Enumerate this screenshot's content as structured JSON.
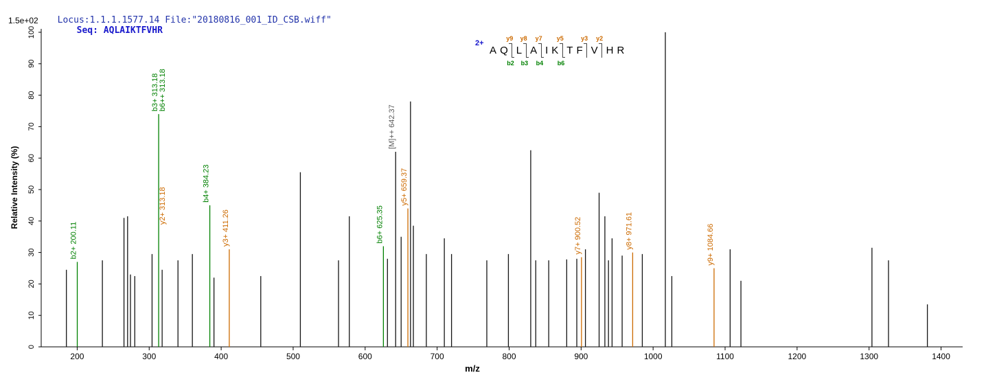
{
  "header": {
    "locus_file": "Locus:1.1.1.1577.14 File:\"20180816_001_ID_CSB.wiff\"",
    "seq_label": "Seq:",
    "seq_value": "AQLAIKTFVHR"
  },
  "annotation": {
    "charge": "2+",
    "residues": [
      "A",
      "Q",
      "L",
      "A",
      "I",
      "K",
      "T",
      "F",
      "V",
      "H",
      "R"
    ],
    "cleavages": [
      {
        "after": 2,
        "y": "y9",
        "b": "b2"
      },
      {
        "after": 3,
        "y": "y8",
        "b": "b3"
      },
      {
        "after": 4,
        "y": "y7",
        "b": "b4"
      },
      {
        "after": 6,
        "y": "y5",
        "b": "b6"
      },
      {
        "after": 8,
        "y": "y3",
        "b": ""
      },
      {
        "after": 9,
        "y": "y2",
        "b": ""
      }
    ]
  },
  "chart_data": {
    "type": "bar",
    "subtype": "ms2-fragment-spectrum",
    "title": "",
    "xlabel": "m/z",
    "ylabel": "Relative  Intensity  (%)",
    "y_axis_max_label": "1.5e+02",
    "x_range": [
      150,
      1430
    ],
    "x_ticks": [
      200,
      300,
      400,
      500,
      600,
      700,
      800,
      900,
      1000,
      1100,
      1200,
      1300,
      1400
    ],
    "y_range": [
      0,
      101
    ],
    "y_ticks": [
      0,
      10,
      20,
      30,
      40,
      50,
      60,
      70,
      80,
      90,
      100
    ],
    "grid": false,
    "legend": "none",
    "colors": {
      "b_ion": "#008000",
      "y_ion": "#cc6a00",
      "precursor_label": "#5a5a5a",
      "peak": "#141414",
      "axis": "#000000"
    },
    "peaks": [
      {
        "mz": 185,
        "i": 24.5
      },
      {
        "mz": 200.11,
        "i": 27,
        "ion": "b",
        "labels": [
          {
            "t": "b2+ 200.11",
            "c": "b_ion"
          }
        ]
      },
      {
        "mz": 235,
        "i": 27.5
      },
      {
        "mz": 265,
        "i": 41
      },
      {
        "mz": 270,
        "i": 41.5
      },
      {
        "mz": 274,
        "i": 23
      },
      {
        "mz": 280,
        "i": 22.5
      },
      {
        "mz": 304,
        "i": 29.5
      },
      {
        "mz": 313.18,
        "i": 74,
        "ion": "b",
        "labels": [
          {
            "t": "b3+ 313.18",
            "c": "b_ion"
          },
          {
            "t": "b6++ 313.18",
            "c": "b_ion",
            "dx": 11
          },
          {
            "t": "y2+ 313.18",
            "c": "y_ion",
            "dx": 11,
            "dy": 165
          }
        ]
      },
      {
        "mz": 318,
        "i": 24.5
      },
      {
        "mz": 340,
        "i": 27.5
      },
      {
        "mz": 360,
        "i": 29.5
      },
      {
        "mz": 384.23,
        "i": 45,
        "ion": "b",
        "labels": [
          {
            "t": "b4+ 384.23",
            "c": "b_ion"
          }
        ]
      },
      {
        "mz": 390,
        "i": 22
      },
      {
        "mz": 411.26,
        "i": 31,
        "ion": "y",
        "labels": [
          {
            "t": "y3+ 411.26",
            "c": "y_ion"
          }
        ]
      },
      {
        "mz": 455,
        "i": 22.5
      },
      {
        "mz": 510,
        "i": 55.5
      },
      {
        "mz": 563,
        "i": 27.5
      },
      {
        "mz": 578,
        "i": 41.5
      },
      {
        "mz": 625.35,
        "i": 32,
        "ion": "b",
        "labels": [
          {
            "t": "b6+ 625.35",
            "c": "b_ion"
          }
        ]
      },
      {
        "mz": 631,
        "i": 28
      },
      {
        "mz": 642.37,
        "i": 62,
        "labels": [
          {
            "t": "[M]++ 642.37",
            "c": "precursor_label"
          }
        ]
      },
      {
        "mz": 650,
        "i": 35
      },
      {
        "mz": 659.37,
        "i": 44,
        "ion": "y",
        "labels": [
          {
            "t": "y5+ 659.37",
            "c": "y_ion"
          }
        ]
      },
      {
        "mz": 663,
        "i": 78
      },
      {
        "mz": 667,
        "i": 38.5
      },
      {
        "mz": 685,
        "i": 29.5
      },
      {
        "mz": 710,
        "i": 34.5
      },
      {
        "mz": 720,
        "i": 29.5
      },
      {
        "mz": 769,
        "i": 27.5
      },
      {
        "mz": 799,
        "i": 29.5
      },
      {
        "mz": 830,
        "i": 62.5
      },
      {
        "mz": 837,
        "i": 27.5
      },
      {
        "mz": 855,
        "i": 27.5
      },
      {
        "mz": 880,
        "i": 27.8
      },
      {
        "mz": 894,
        "i": 28
      },
      {
        "mz": 900.52,
        "i": 28.5,
        "ion": "y",
        "labels": [
          {
            "t": "y7+ 900.52",
            "c": "y_ion"
          }
        ]
      },
      {
        "mz": 906,
        "i": 31
      },
      {
        "mz": 925,
        "i": 49
      },
      {
        "mz": 933,
        "i": 41.5
      },
      {
        "mz": 938,
        "i": 27.5
      },
      {
        "mz": 943,
        "i": 34.5
      },
      {
        "mz": 957,
        "i": 29
      },
      {
        "mz": 971.61,
        "i": 30,
        "ion": "y",
        "labels": [
          {
            "t": "y8+ 971.61",
            "c": "y_ion"
          }
        ]
      },
      {
        "mz": 985,
        "i": 29.5
      },
      {
        "mz": 1017,
        "i": 100
      },
      {
        "mz": 1026,
        "i": 22.5
      },
      {
        "mz": 1084.66,
        "i": 25,
        "ion": "y",
        "labels": [
          {
            "t": "y9+ 1084.66",
            "c": "y_ion"
          }
        ]
      },
      {
        "mz": 1107,
        "i": 31
      },
      {
        "mz": 1122,
        "i": 21
      },
      {
        "mz": 1304,
        "i": 31.5
      },
      {
        "mz": 1327,
        "i": 27.5
      },
      {
        "mz": 1381,
        "i": 13.5
      }
    ]
  }
}
